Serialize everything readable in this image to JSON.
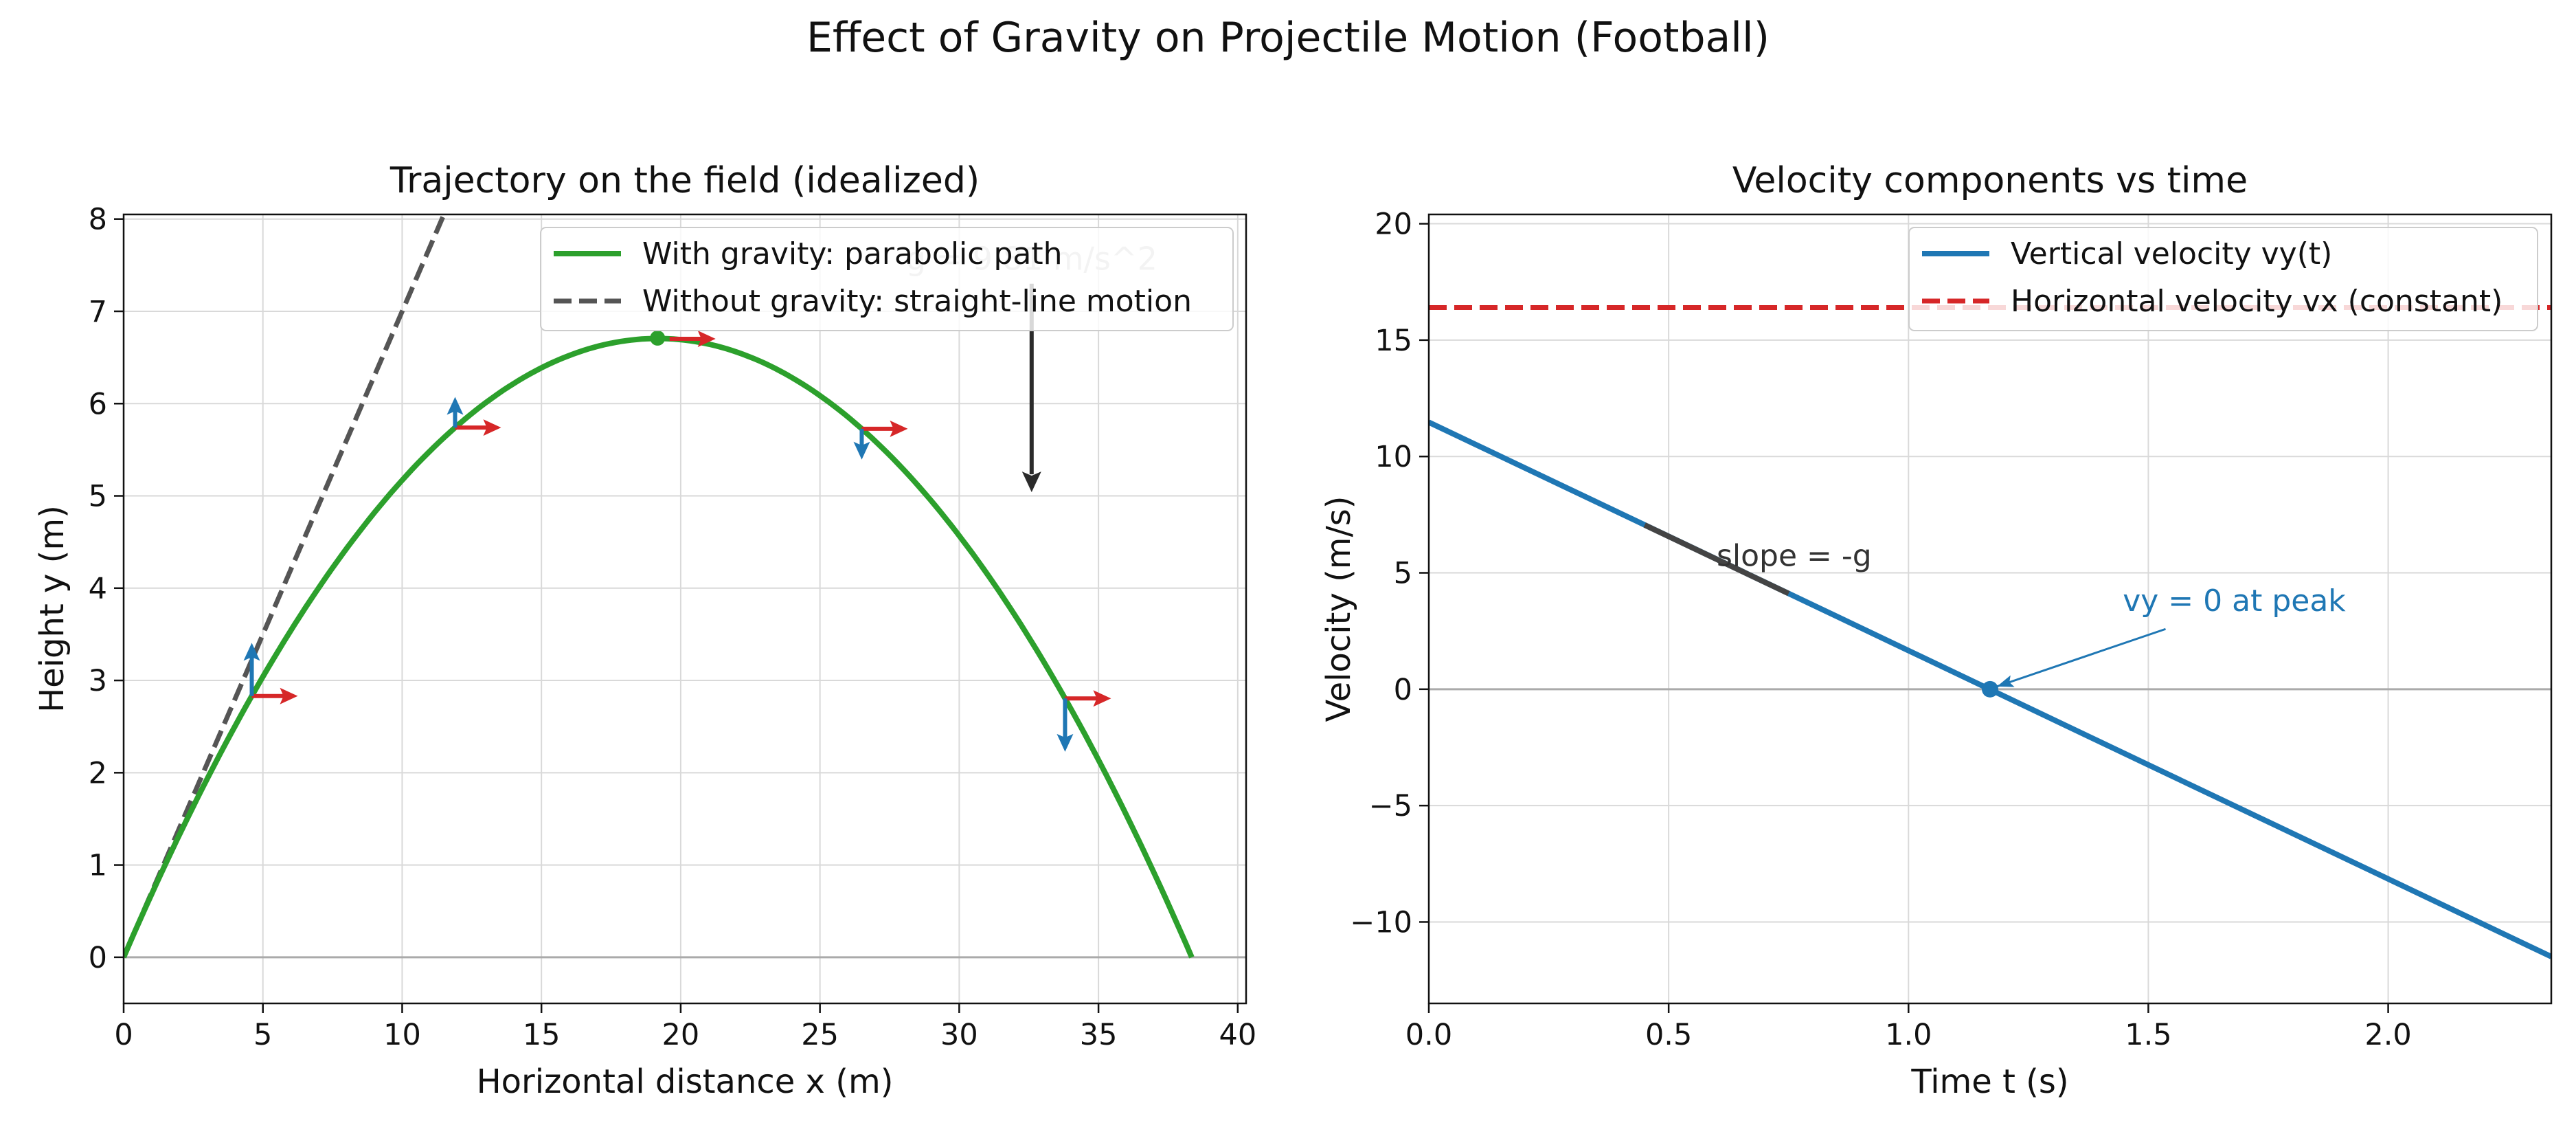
{
  "suptitle": "Effect of Gravity on Projectile Motion (Football)",
  "colors": {
    "trajectory": "#2ca02c",
    "no_gravity": "#555555",
    "vy": "#1f77b4",
    "vx": "#d62728",
    "gravity_arrow": "#2b2b2b",
    "slope_segment": "#444444"
  },
  "chart_data": [
    {
      "type": "line",
      "title": "Trajectory on the field (idealized)",
      "xlabel": "Horizontal distance x (m)",
      "ylabel": "Height y (m)",
      "xlim": [
        0,
        40.3
      ],
      "ylim": [
        -0.5,
        8.05
      ],
      "xticks": [
        0,
        5,
        10,
        15,
        20,
        25,
        30,
        35,
        40
      ],
      "yticks": [
        0,
        1,
        2,
        3,
        4,
        5,
        6,
        7,
        8
      ],
      "grid": true,
      "legend_position": "top-right",
      "launch": {
        "vx": 16.4,
        "vy0": 11.47,
        "g": 9.81
      },
      "series": [
        {
          "name": "With gravity: parabolic path",
          "style": "solid",
          "x": [
            0,
            4.1,
            8.2,
            12.3,
            16.4,
            19.17,
            22.1,
            26.2,
            30.3,
            34.4,
            38.35
          ],
          "y": [
            0,
            2.57,
            4.5,
            5.79,
            6.43,
            6.71,
            6.48,
            5.79,
            4.51,
            2.62,
            0
          ]
        },
        {
          "name": "Without gravity: straight-line motion",
          "style": "dashed",
          "x": [
            0,
            5,
            10,
            15
          ],
          "y": [
            0,
            3.5,
            7.0,
            10.5
          ]
        }
      ],
      "peak": {
        "x": 19.17,
        "y": 6.71
      },
      "velocity_arrows_at_x": [
        4.6,
        11.9,
        19.6,
        26.5,
        33.8
      ],
      "annotations": [
        {
          "text": "g = 9.81 m/s^2",
          "x": 32.6,
          "y": 7.3,
          "arrow_to_y": 5.1
        }
      ]
    },
    {
      "type": "line",
      "title": "Velocity components vs time",
      "xlabel": "Time t (s)",
      "ylabel": "Velocity (m/s)",
      "xlim": [
        0,
        2.34
      ],
      "ylim": [
        -13.5,
        20.4
      ],
      "xticks": [
        0.0,
        0.5,
        1.0,
        1.5,
        2.0
      ],
      "yticks": [
        -10,
        -5,
        0,
        5,
        10,
        15,
        20
      ],
      "grid": true,
      "legend_position": "top-right",
      "series": [
        {
          "name": "Vertical velocity vy(t)",
          "style": "solid",
          "x": [
            0,
            0.5,
            1.0,
            1.5,
            2.0,
            2.34
          ],
          "y": [
            11.47,
            6.57,
            1.66,
            -3.25,
            -8.15,
            -11.49
          ]
        },
        {
          "name": "Horizontal velocity vx (constant)",
          "style": "dashed",
          "x": [
            0,
            2.34
          ],
          "y": [
            16.4,
            16.4
          ]
        }
      ],
      "peak_point": {
        "x": 1.17,
        "y": 0
      },
      "slope_segment": {
        "x": [
          0.45,
          0.75
        ],
        "label": "slope = -g"
      },
      "annotations": [
        {
          "text": "vy = 0 at peak",
          "x": 1.45,
          "y": 3.0,
          "arrow_to_x": 1.17,
          "arrow_to_y": 0
        },
        {
          "text": "slope = -g",
          "x": 0.6,
          "y": 5.3
        }
      ]
    }
  ]
}
